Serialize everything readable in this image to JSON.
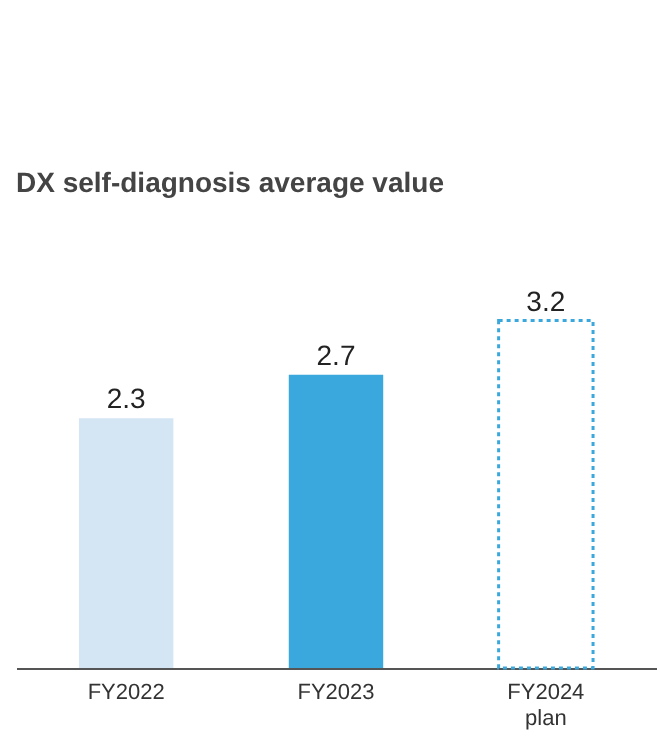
{
  "chart_data": {
    "type": "bar",
    "title": "DX self-diagnosis average value",
    "categories": [
      "FY2022",
      "FY2023",
      "FY2024 plan"
    ],
    "series": [
      {
        "values": [
          2.3,
          2.7,
          null
        ],
        "colors": [
          "#d4e6f4",
          "#3aa8dc",
          null
        ]
      },
      {
        "values": [
          null,
          null,
          3.2
        ],
        "color": "#3aa8dc",
        "line_style": "dotted"
      }
    ],
    "data_labels": true
  }
}
